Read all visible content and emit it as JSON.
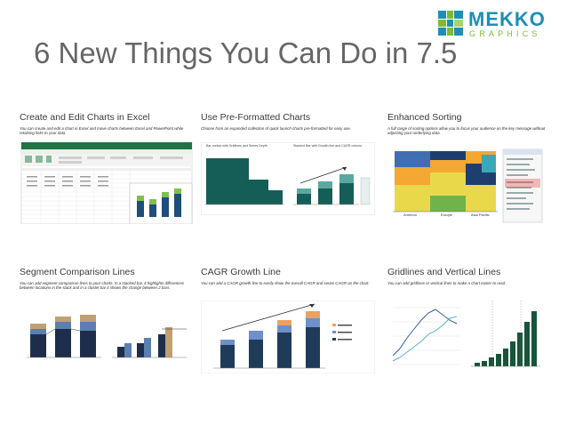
{
  "brand": {
    "name": "MEKKO",
    "tagline": "GRAPHICS",
    "colors": {
      "blue": "#1d8fb6",
      "green": "#7dbb2e"
    }
  },
  "title": "6 New Things You Can Do in 7.5",
  "cards": [
    {
      "heading": "Create and Edit Charts in Excel",
      "desc": "You can create and edit a chart in Excel and move charts between Excel and PowerPoint while retaining links to your data.",
      "icon": "excel-screenshot"
    },
    {
      "heading": "Use Pre-Formatted Charts",
      "desc": "Choose from an expanded collection of quick launch charts pre-formatted for easy use.",
      "sub_left": "Bar-mekko with Gridlines and Series Depth",
      "sub_right": "Stacked Bar with Growth line and CAGR column",
      "icon": "preformatted-charts-screenshot"
    },
    {
      "heading": "Enhanced Sorting",
      "desc": "A full range of sorting options allow you to focus your audience on the key message without adjusting your underlying data.",
      "x_labels": [
        "America",
        "Europe",
        "Asia Pacific"
      ],
      "icon": "sorting-screenshot"
    },
    {
      "heading": "Segment Comparison Lines",
      "desc": "You can add segment comparison lines to your charts. In a stacked bar, it highlights differences between locations in the stack and in a cluster bar it shows the change between 2 bars.",
      "icon": "segment-lines-screenshot"
    },
    {
      "heading": "CAGR Growth Line",
      "desc": "You can add a CAGR growth line to easily show the overall CAGR and series CAGR on the chart.",
      "icon": "cagr-screenshot"
    },
    {
      "heading": "Gridlines and Vertical Lines",
      "desc": "You can add gridlines or vertical lines to make a chart easier to read.",
      "icon": "gridlines-screenshot"
    }
  ]
}
